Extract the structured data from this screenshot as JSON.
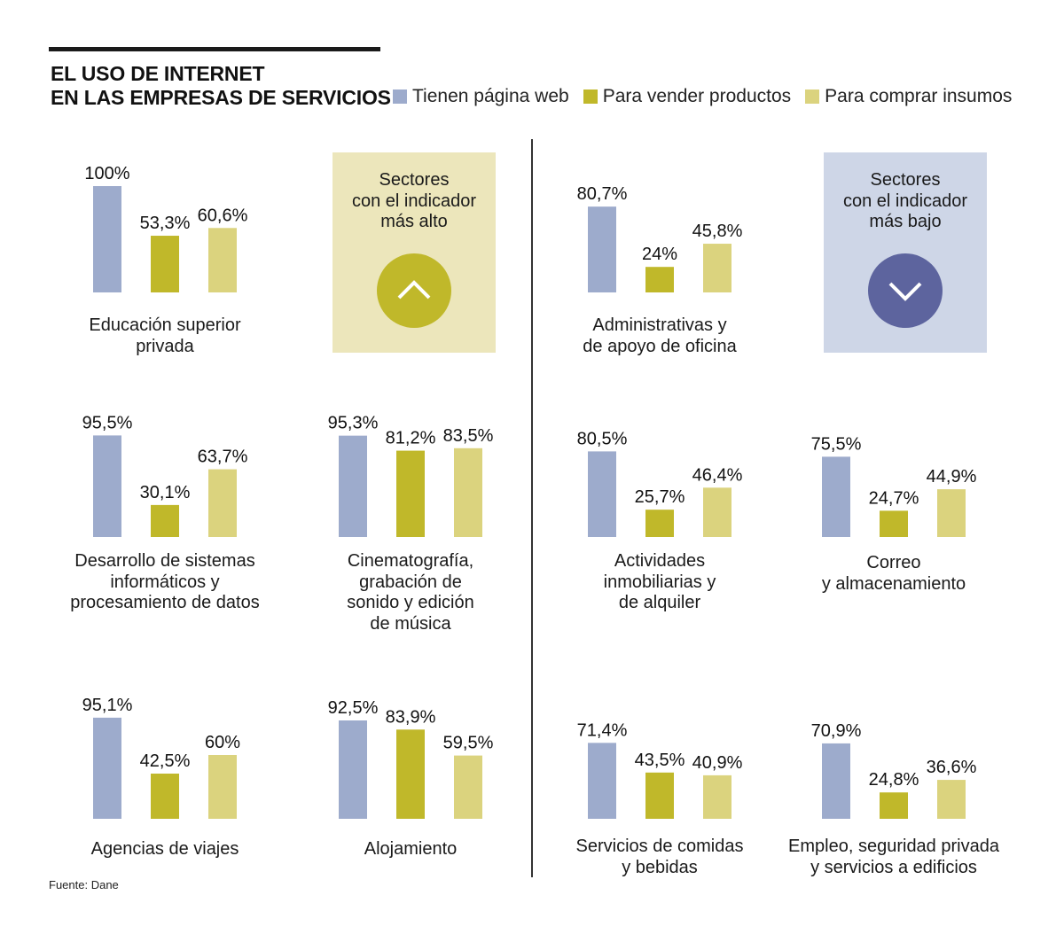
{
  "header": {
    "title_line1": "EL USO DE INTERNET",
    "title_line2": "EN LAS EMPRESAS DE SERVICIOS"
  },
  "colors": {
    "web": "#9dabcc",
    "vender": "#c0b82a",
    "comprar": "#dbd37e",
    "callout_high_bg": "#ece6bb",
    "callout_high_circle": "#c0b82a",
    "callout_low_bg": "#ced6e7",
    "callout_low_circle": "#5d649e"
  },
  "legend": [
    {
      "label": "Tienen página web",
      "color_key": "web"
    },
    {
      "label": "Para vender productos",
      "color_key": "vender"
    },
    {
      "label": "Para comprar insumos",
      "color_key": "comprar"
    }
  ],
  "callouts": {
    "high": {
      "line1": "Sectores",
      "line2": "con el indicador",
      "line3": "más alto",
      "icon": "chevron-up-icon"
    },
    "low": {
      "line1": "Sectores",
      "line2": "con el indicador",
      "line3": "más bajo",
      "icon": "chevron-down-icon"
    }
  },
  "source": "Fuente: Dane",
  "chart_data": {
    "type": "bar",
    "title": "EL USO DE INTERNET EN LAS EMPRESAS DE SERVICIOS",
    "xlabel": "",
    "ylabel": "",
    "ylim": [
      0,
      100
    ],
    "unit": "%",
    "grid": false,
    "legend_position": "top-right",
    "series_names": [
      "Tienen página web",
      "Para vender productos",
      "Para comprar insumos"
    ],
    "groups": {
      "highest": [
        {
          "sector": [
            "Educación superior",
            "privada"
          ],
          "values": [
            100,
            53.3,
            60.6
          ],
          "labels": [
            "100%",
            "53,3%",
            "60,6%"
          ]
        },
        {
          "sector": [
            "Desarrollo de sistemas",
            "informáticos y",
            "procesamiento de datos"
          ],
          "values": [
            95.5,
            30.1,
            63.7
          ],
          "labels": [
            "95,5%",
            "30,1%",
            "63,7%"
          ]
        },
        {
          "sector": [
            "Cinematografía,",
            "grabación de",
            "sonido y edición",
            "de música"
          ],
          "values": [
            95.3,
            81.2,
            83.5
          ],
          "labels": [
            "95,3%",
            "81,2%",
            "83,5%"
          ]
        },
        {
          "sector": [
            "Agencias de viajes"
          ],
          "values": [
            95.1,
            42.5,
            60
          ],
          "labels": [
            "95,1%",
            "42,5%",
            "60%"
          ]
        },
        {
          "sector": [
            "Alojamiento"
          ],
          "values": [
            92.5,
            83.9,
            59.5
          ],
          "labels": [
            "92,5%",
            "83,9%",
            "59,5%"
          ]
        }
      ],
      "lowest": [
        {
          "sector": [
            "Administrativas y",
            "de apoyo de oficina"
          ],
          "values": [
            80.7,
            24,
            45.8
          ],
          "labels": [
            "80,7%",
            "24%",
            "45,8%"
          ]
        },
        {
          "sector": [
            "Actividades",
            "inmobiliarias y",
            "de alquiler"
          ],
          "values": [
            80.5,
            25.7,
            46.4
          ],
          "labels": [
            "80,5%",
            "25,7%",
            "46,4%"
          ]
        },
        {
          "sector": [
            "Correo",
            "y almacenamiento"
          ],
          "values": [
            75.5,
            24.7,
            44.9
          ],
          "labels": [
            "75,5%",
            "24,7%",
            "44,9%"
          ]
        },
        {
          "sector": [
            "Servicios de comidas",
            "y bebidas"
          ],
          "values": [
            71.4,
            43.5,
            40.9
          ],
          "labels": [
            "71,4%",
            "43,5%",
            "40,9%"
          ]
        },
        {
          "sector": [
            "Empleo, seguridad privada",
            "y servicios a edificios"
          ],
          "values": [
            70.9,
            24.8,
            36.6
          ],
          "labels": [
            "70,9%",
            "24,8%",
            "36,6%"
          ]
        }
      ]
    }
  }
}
